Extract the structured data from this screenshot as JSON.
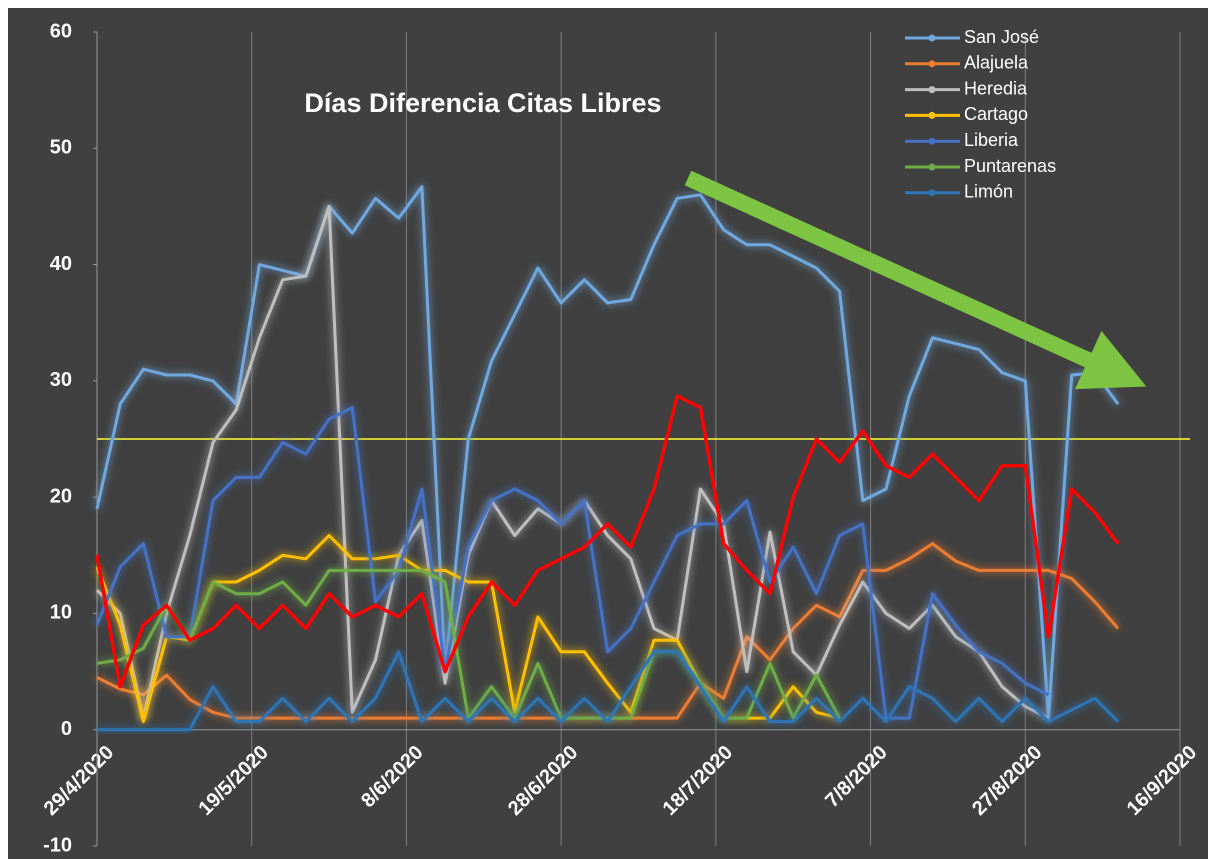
{
  "chart_data": {
    "type": "line",
    "title": "Días Diferencia Citas Libres",
    "x": [
      "29/4/2020",
      "2/5/2020",
      "5/5/2020",
      "8/5/2020",
      "11/5/2020",
      "14/5/2020",
      "17/5/2020",
      "20/5/2020",
      "23/5/2020",
      "26/5/2020",
      "29/5/2020",
      "1/6/2020",
      "4/6/2020",
      "7/6/2020",
      "10/6/2020",
      "13/6/2020",
      "16/6/2020",
      "19/6/2020",
      "22/6/2020",
      "25/6/2020",
      "28/6/2020",
      "1/7/2020",
      "4/7/2020",
      "7/7/2020",
      "10/7/2020",
      "13/7/2020",
      "16/7/2020",
      "19/7/2020",
      "22/7/2020",
      "25/7/2020",
      "28/7/2020",
      "31/7/2020",
      "3/8/2020",
      "6/8/2020",
      "9/8/2020",
      "12/8/2020",
      "15/8/2020",
      "18/8/2020",
      "21/8/2020",
      "24/8/2020",
      "27/8/2020",
      "30/8/2020",
      "2/9/2020",
      "5/9/2020",
      "8/9/2020"
    ],
    "series": [
      {
        "name": "San José",
        "color": "#6fa8e0",
        "values": [
          19,
          28,
          31,
          30.5,
          30.5,
          30,
          28,
          40,
          39.5,
          39,
          45,
          42.7,
          45.7,
          44,
          46.7,
          5,
          25,
          31.7,
          35.7,
          39.7,
          36.7,
          38.7,
          36.7,
          37,
          41.7,
          45.7,
          46,
          43,
          41.7,
          41.7,
          40.7,
          39.7,
          37.7,
          19.7,
          20.7,
          28.7,
          33.7,
          33.2,
          32.7,
          30.7,
          30,
          1,
          30.5,
          30.7,
          28
        ]
      },
      {
        "name": "Alajuela",
        "color": "#ed7d31",
        "values": [
          4.5,
          3.5,
          3,
          4.7,
          2.6,
          1.5,
          1,
          1,
          1,
          1,
          1,
          1,
          1,
          1,
          1,
          1,
          1,
          1,
          1,
          1,
          1,
          1,
          1,
          1,
          1,
          1,
          4,
          2.7,
          8,
          6,
          8.7,
          10.7,
          9.7,
          13.7,
          13.7,
          14.7,
          16,
          14.5,
          13.7,
          13.7,
          13.7,
          13.7,
          13,
          11,
          8.7
        ]
      },
      {
        "name": "Heredia",
        "color": "#bfbfbf",
        "values": [
          12,
          10,
          1,
          10,
          16.7,
          24.7,
          27.5,
          33.7,
          38.7,
          39,
          45,
          1.5,
          6,
          15,
          18,
          4,
          15,
          19.7,
          16.7,
          19,
          17.7,
          19.7,
          16.7,
          14.7,
          8.7,
          7.7,
          20.7,
          17.7,
          5,
          17,
          6.7,
          4.7,
          9,
          12.7,
          10,
          8.7,
          10.7,
          8,
          6.7,
          3.7,
          2,
          1,
          null,
          null,
          null
        ]
      },
      {
        "name": "Cartago",
        "color": "#ffc000",
        "values": [
          14,
          9,
          0.7,
          8,
          7.7,
          12.7,
          12.7,
          13.7,
          15,
          14.7,
          16.7,
          14.7,
          14.7,
          15,
          13.7,
          13.7,
          12.7,
          12.7,
          1.5,
          9.7,
          6.7,
          6.7,
          4,
          1.5,
          7.7,
          7.7,
          4,
          1,
          1,
          1,
          3.7,
          1.5,
          1,
          null,
          null,
          null,
          null,
          null,
          null,
          null,
          null,
          null,
          null,
          null,
          null
        ]
      },
      {
        "name": "Liberia",
        "color": "#4472c4",
        "values": [
          9,
          14,
          16,
          8,
          8,
          19.7,
          21.7,
          21.7,
          24.7,
          23.7,
          26.7,
          27.7,
          11,
          13.7,
          20.7,
          5,
          15.7,
          19.7,
          20.7,
          19.7,
          17.7,
          19.7,
          6.7,
          8.7,
          12.7,
          16.7,
          17.7,
          17.7,
          19.7,
          12.7,
          15.7,
          11.7,
          16.7,
          17.7,
          1,
          1,
          11.7,
          9,
          6.7,
          5.7,
          4,
          3,
          null,
          null,
          null
        ]
      },
      {
        "name": "Puntarenas",
        "color": "#70ad47",
        "values": [
          5.7,
          6,
          7,
          10.7,
          7.7,
          12.7,
          11.7,
          11.7,
          12.7,
          10.7,
          13.7,
          13.7,
          13.7,
          13.7,
          13.7,
          12.7,
          1,
          3.7,
          1,
          5.7,
          1,
          1,
          1,
          1,
          6.7,
          6.7,
          4,
          1,
          1,
          5.7,
          1,
          4.7,
          1,
          null,
          null,
          null,
          null,
          null,
          null,
          null,
          null,
          null,
          null,
          null,
          null
        ]
      },
      {
        "name": "Limón",
        "color": "#2e75b6",
        "values": [
          0,
          0,
          0,
          0,
          0,
          3.7,
          0.7,
          0.7,
          2.7,
          0.7,
          2.7,
          0.7,
          2.7,
          6.7,
          0.7,
          2.7,
          0.7,
          2.7,
          0.7,
          2.7,
          0.7,
          2.7,
          0.7,
          3.7,
          6.7,
          6.7,
          3.7,
          0.7,
          3.7,
          0.7,
          0.7,
          2.7,
          0.7,
          2.7,
          0.7,
          3.7,
          2.7,
          0.7,
          2.7,
          0.7,
          2.7,
          0.7,
          1.7,
          2.7,
          0.7
        ]
      },
      {
        "color": "#ff0000",
        "values": [
          15,
          3.7,
          9,
          10.7,
          7.7,
          8.7,
          10.7,
          8.7,
          10.7,
          8.7,
          11.7,
          9.7,
          10.7,
          9.7,
          11.7,
          5,
          9.7,
          12.7,
          10.7,
          13.7,
          14.7,
          15.7,
          17.7,
          15.7,
          20.7,
          28.7,
          27.7,
          16,
          13.7,
          11.7,
          20,
          25,
          23,
          25.7,
          22.7,
          21.7,
          23.7,
          21.7,
          19.7,
          22.7,
          22.7,
          8,
          20.7,
          18.7,
          16
        ]
      }
    ],
    "reference_lines": [
      {
        "value": 25,
        "color": "#ffff33"
      }
    ],
    "xlim": [
      "29/4/2020",
      "16/9/2020"
    ],
    "xticks": [
      "29/4/2020",
      "19/5/2020",
      "8/6/2020",
      "28/6/2020",
      "18/7/2020",
      "7/8/2020",
      "27/8/2020",
      "16/9/2020"
    ],
    "ylim": [
      -10,
      60
    ],
    "yticks": [
      -10,
      0,
      10,
      20,
      30,
      40,
      50,
      60
    ],
    "grid": "x",
    "legend": "top-right"
  }
}
